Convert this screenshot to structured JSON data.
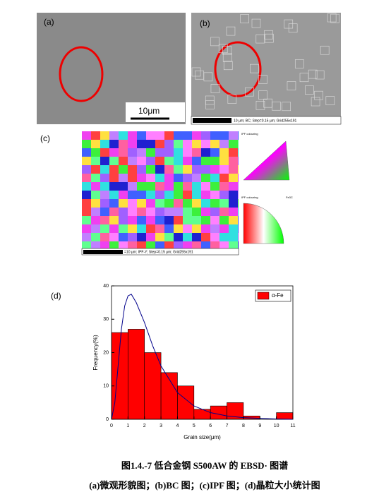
{
  "panels": {
    "a": {
      "label": "(a)",
      "scale_bar": "10μm"
    },
    "b": {
      "label": "(b)",
      "info": "10 µm; BC; Step=0.15 µm; Grid255x191"
    },
    "c": {
      "label": "(c)",
      "info": "=10 µm; IPF-Y; Step=0.15 µm; Grid255x191",
      "legend_top": "IPF colouring",
      "legend_bottom": "IPF colouring",
      "phase": "Fe3C"
    }
  },
  "chart_data": {
    "type": "histogram",
    "label": "(d)",
    "x_label": "Grain size(μm)",
    "y_label": "Frequency(%)",
    "bins": [
      0,
      1,
      2,
      3,
      4,
      5,
      6,
      7,
      8,
      9,
      10,
      11
    ],
    "values": [
      26,
      27,
      20,
      14,
      10,
      3,
      4,
      5,
      1,
      0,
      2
    ],
    "color": "#ff0000",
    "series_name": "α-Fe",
    "legend": "upper right",
    "fit": {
      "x": [
        0,
        0.2,
        0.4,
        0.6,
        0.8,
        1.0,
        1.2,
        1.5,
        2,
        2.5,
        3,
        4,
        5,
        6,
        7,
        8,
        9,
        10,
        11
      ],
      "values": [
        0,
        5,
        16,
        27,
        34,
        37,
        37.5,
        35,
        29,
        22,
        16,
        8,
        4,
        2,
        1,
        0.5,
        0.3,
        0.1,
        0
      ],
      "color": "#00008b"
    },
    "xlim": [
      0,
      11
    ],
    "ylim": [
      0,
      40
    ],
    "xticks": [
      0,
      1,
      2,
      3,
      4,
      5,
      6,
      7,
      8,
      9,
      10,
      11
    ],
    "yticks": [
      0,
      10,
      20,
      30,
      40
    ]
  },
  "caption": {
    "title": "图1.4.-7 低合金钢 S500AW 的 EBSD· 图谱",
    "subtitle": "(a)微观形貌图；(b)BC 图；(c)IPF 图；(d)晶粒大小统计图"
  }
}
